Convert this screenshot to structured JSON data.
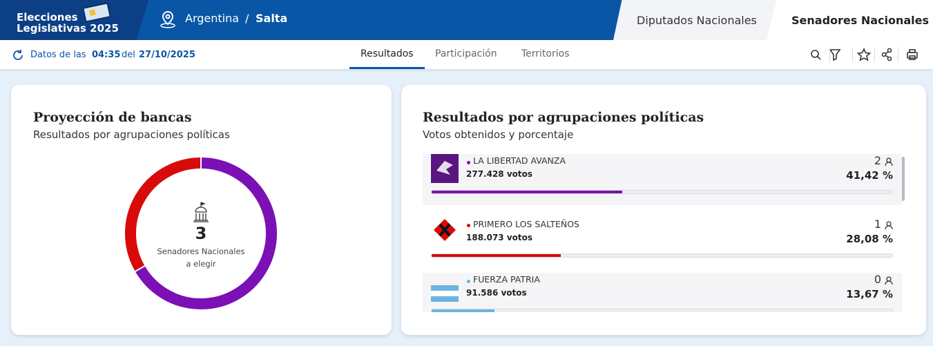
{
  "header": {
    "brand": [
      "Elecciones",
      "Legislativas 2025"
    ],
    "country": "Argentina",
    "separator": "/",
    "province": "Salta",
    "tabs": [
      "Diputados Nacionales",
      "Senadores Nacionales"
    ]
  },
  "toolbar": {
    "prefix": "Datos de las",
    "time": "04:35",
    "joiner": "del",
    "date": "27/10/2025",
    "tabs": [
      "Resultados",
      "Participación",
      "Territorios"
    ]
  },
  "seats_card": {
    "title": "Proyección de bancas",
    "subtitle": "Resultados por agrupaciones políticas",
    "total": "3",
    "caption": [
      "Senadores Nacionales",
      "a elegir"
    ]
  },
  "results_card": {
    "title": "Resultados por agrupaciones políticas",
    "subtitle": "Votos obtenidos y porcentaje"
  },
  "parties": [
    {
      "name": "LA LIBERTAD AVANZA",
      "votes": "277.428 votos",
      "seats": 2,
      "pct": 41.42,
      "pct_label": "41,42 %",
      "color": "#7b10b5"
    },
    {
      "name": "PRIMERO LOS SALTEÑOS",
      "votes": "188.073 votos",
      "seats": 1,
      "pct": 28.08,
      "pct_label": "28,08 %",
      "color": "#d90a0a"
    },
    {
      "name": "FUERZA PATRIA",
      "votes": "91.586 votos",
      "seats": 0,
      "pct": 13.67,
      "pct_label": "13,67 %",
      "color": "#6cb4e2"
    }
  ]
}
